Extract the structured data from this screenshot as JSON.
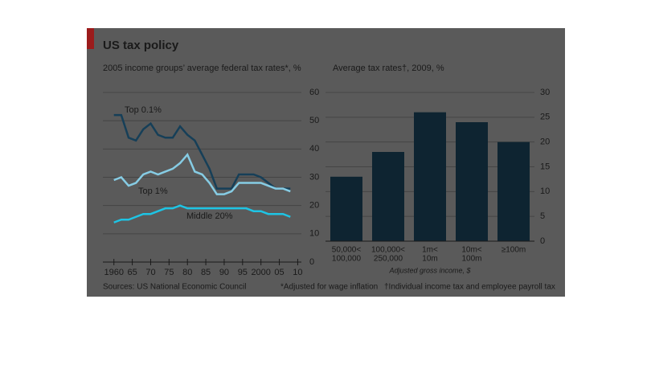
{
  "title": "US tax policy",
  "footer": {
    "source": "Sources: US National Economic Council",
    "note1": "*Adjusted for wage inflation",
    "note2": "†Individual income tax and employee payroll tax"
  },
  "chart_data": [
    {
      "type": "line",
      "title": "2005 income groups’ average federal tax rates*, %",
      "x": [
        1960,
        1962,
        1964,
        1966,
        1968,
        1970,
        1972,
        1974,
        1976,
        1978,
        1980,
        1982,
        1984,
        1986,
        1988,
        1990,
        1992,
        1994,
        1996,
        1998,
        2000,
        2002,
        2004,
        2006,
        2008
      ],
      "series": [
        {
          "name": "Top 0.1%",
          "color": "#163f58",
          "values": [
            52,
            52,
            44,
            43,
            47,
            49,
            45,
            44,
            44,
            48,
            45,
            43,
            38,
            33,
            26,
            26,
            26,
            31,
            31,
            31,
            30,
            28,
            26,
            26,
            26
          ]
        },
        {
          "name": "Top 1%",
          "color": "#86cce4",
          "values": [
            29,
            30,
            27,
            28,
            31,
            32,
            31,
            32,
            33,
            35,
            38,
            32,
            31,
            28,
            24,
            24,
            25,
            28,
            28,
            28,
            28,
            27,
            26,
            26,
            25
          ]
        },
        {
          "name": "Middle 20%",
          "color": "#1ec4e4",
          "values": [
            14,
            15,
            15,
            16,
            17,
            17,
            18,
            19,
            19,
            20,
            19,
            19,
            19,
            19,
            19,
            19,
            19,
            19,
            19,
            18,
            18,
            17,
            17,
            17,
            16
          ]
        }
      ],
      "xlim": [
        1957,
        2011
      ],
      "xticks": [
        1960,
        {
          "value": 1965,
          "label": "65"
        },
        {
          "value": 1970,
          "label": "70"
        },
        {
          "value": 1975,
          "label": "75"
        },
        {
          "value": 1980,
          "label": "80"
        },
        {
          "value": 1985,
          "label": "85"
        },
        {
          "value": 1990,
          "label": "90"
        },
        {
          "value": 1995,
          "label": "95"
        },
        2000,
        {
          "value": 2005,
          "label": "05"
        },
        {
          "value": 2010,
          "label": "10"
        }
      ],
      "ylim": [
        0,
        60
      ],
      "yticks": [
        0,
        10,
        20,
        30,
        40,
        50,
        60
      ],
      "grid": true
    },
    {
      "type": "bar",
      "title": "Average tax rates†, 2009, %",
      "categories": [
        [
          "50,000<",
          "100,000"
        ],
        [
          "100,000<",
          "250,000"
        ],
        [
          "1m<",
          "10m"
        ],
        [
          "10m<",
          "100m"
        ],
        [
          "≥100m"
        ]
      ],
      "values": [
        13,
        18,
        26,
        24,
        20
      ],
      "color": "#0e2431",
      "x_label": "Adjusted gross income, $",
      "ylim": [
        0,
        30
      ],
      "yticks": [
        0,
        5,
        10,
        15,
        20,
        25,
        30
      ],
      "grid": true
    }
  ]
}
